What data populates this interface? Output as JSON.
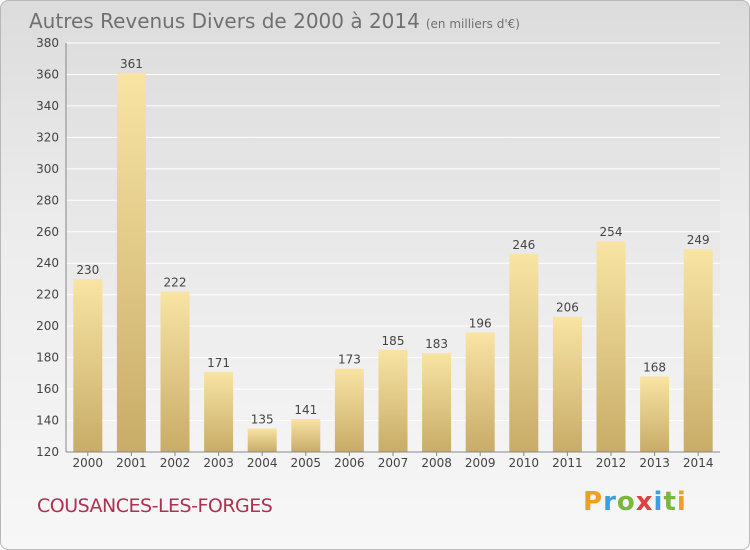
{
  "header": {
    "title": "Autres Revenus Divers de 2000 à 2014",
    "unit": "(en milliers d'€)"
  },
  "footer": {
    "commune": "COUSANCES-LES-FORGES",
    "logo": "Proxiti"
  },
  "colors": {
    "bar_light": "#f8e4a4",
    "bar_dark": "#c8ac68",
    "commune_text": "#b03050",
    "title_text": "#707070"
  },
  "chart_data": {
    "type": "bar",
    "title": "Autres Revenus Divers de 2000 à 2014",
    "subtitle": "(en milliers d'€)",
    "categories": [
      "2000",
      "2001",
      "2002",
      "2003",
      "2004",
      "2005",
      "2006",
      "2007",
      "2008",
      "2009",
      "2010",
      "2011",
      "2012",
      "2013",
      "2014"
    ],
    "values": [
      230,
      361,
      222,
      171,
      135,
      141,
      173,
      185,
      183,
      196,
      246,
      206,
      254,
      168,
      249
    ],
    "ylim": [
      120,
      380
    ],
    "yticks": [
      120,
      140,
      160,
      180,
      200,
      220,
      240,
      260,
      280,
      300,
      320,
      340,
      360,
      380
    ],
    "grid": true,
    "legend": "none"
  }
}
